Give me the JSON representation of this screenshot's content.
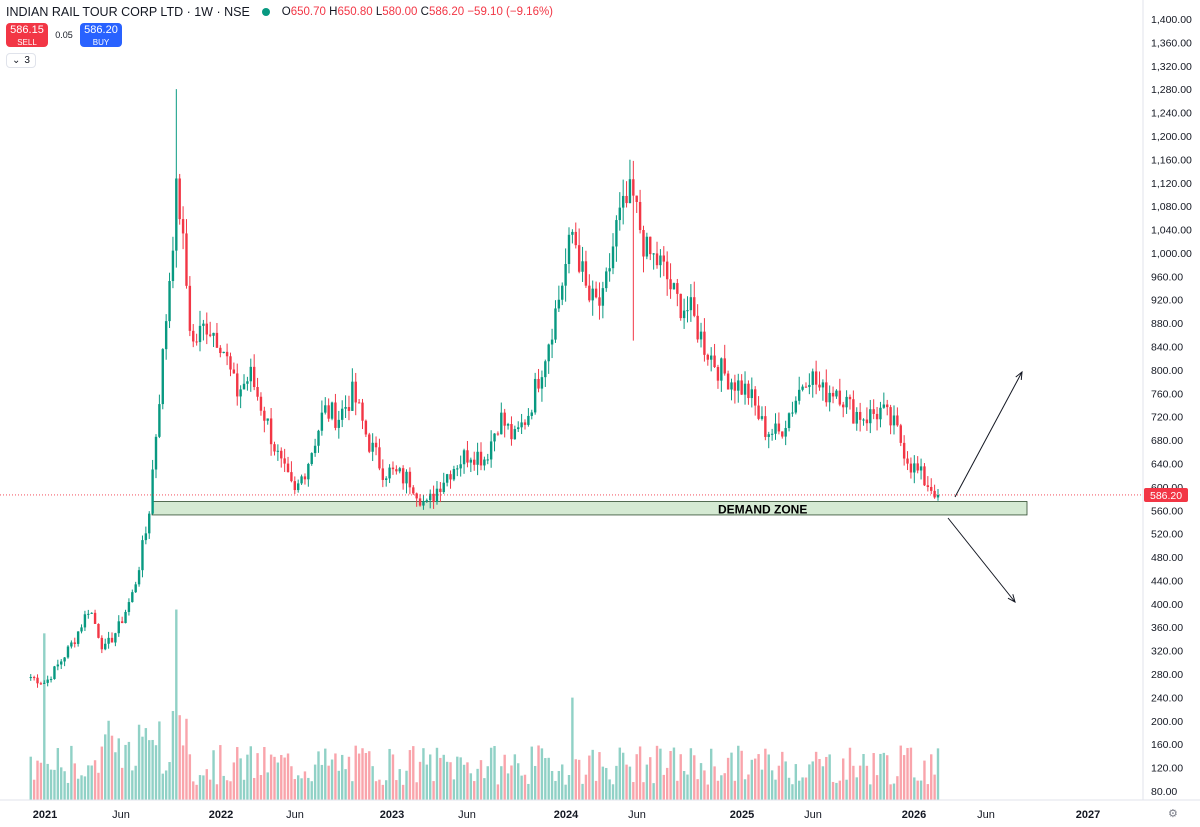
{
  "header": {
    "title": "INDIAN RAIL TOUR CORP LTD · 1W · NSE",
    "open_label": "O",
    "open": "650.70",
    "high_label": "H",
    "high": "650.80",
    "low_label": "L",
    "low": "580.00",
    "close_label": "C",
    "close": "586.20",
    "change": "−59.10 (−9.16%)",
    "status_color": "#089981"
  },
  "trade": {
    "sell_price": "586.15",
    "sell_label": "SELL",
    "spread": "0.05",
    "buy_price": "586.20",
    "buy_label": "BUY"
  },
  "indicators": {
    "chevron": "⌄",
    "count": "3"
  },
  "price_axis": {
    "labels": [
      "1,400.00",
      "1,360.00",
      "1,320.00",
      "1,280.00",
      "1,240.00",
      "1,200.00",
      "1,160.00",
      "1,120.00",
      "1,080.00",
      "1,040.00",
      "1,000.00",
      "960.00",
      "920.00",
      "880.00",
      "840.00",
      "800.00",
      "760.00",
      "720.00",
      "680.00",
      "640.00",
      "600.00",
      "560.00",
      "520.00",
      "480.00",
      "440.00",
      "400.00",
      "360.00",
      "320.00",
      "280.00",
      "240.00",
      "200.00",
      "160.00",
      "120.00",
      "80.00"
    ],
    "current_price_label": "586.20",
    "current_price": 586.2
  },
  "time_axis": [
    "2021",
    "Jun",
    "2022",
    "Jun",
    "2023",
    "Jun",
    "2024",
    "Jun",
    "2025",
    "Jun",
    "2026",
    "Jun",
    "2027"
  ],
  "annotation": {
    "demand_zone": "DEMAND ZONE",
    "zone_low": 552,
    "zone_high": 575
  },
  "colors": {
    "up": "#089981",
    "down": "#f23645",
    "zone_fill": "#d5ead3",
    "zone_border": "#2e4a2e"
  },
  "chart_data": {
    "type": "candlestick",
    "timeframe": "1W",
    "ylim": [
      60,
      1420
    ],
    "waypoints": [
      {
        "date": "2020-12",
        "price": 275
      },
      {
        "date": "2021-01",
        "price": 265
      },
      {
        "date": "2021-02",
        "price": 300
      },
      {
        "date": "2021-03",
        "price": 340
      },
      {
        "date": "2021-04",
        "price": 395
      },
      {
        "date": "2021-05",
        "price": 320
      },
      {
        "date": "2021-06",
        "price": 360
      },
      {
        "date": "2021-07",
        "price": 420
      },
      {
        "date": "2021-08",
        "price": 540
      },
      {
        "date": "2021-09",
        "price": 820
      },
      {
        "date": "2021-10",
        "price": 1120
      },
      {
        "date": "2021-11",
        "price": 840
      },
      {
        "date": "2021-12",
        "price": 880
      },
      {
        "date": "2022-01",
        "price": 850
      },
      {
        "date": "2022-02",
        "price": 760
      },
      {
        "date": "2022-03",
        "price": 790
      },
      {
        "date": "2022-04",
        "price": 720
      },
      {
        "date": "2022-05",
        "price": 640
      },
      {
        "date": "2022-06",
        "price": 585
      },
      {
        "date": "2022-07",
        "price": 650
      },
      {
        "date": "2022-08",
        "price": 730
      },
      {
        "date": "2022-09",
        "price": 720
      },
      {
        "date": "2022-10",
        "price": 760
      },
      {
        "date": "2022-11",
        "price": 680
      },
      {
        "date": "2022-12",
        "price": 630
      },
      {
        "date": "2023-01",
        "price": 620
      },
      {
        "date": "2023-02",
        "price": 610
      },
      {
        "date": "2023-03",
        "price": 565
      },
      {
        "date": "2023-04",
        "price": 610
      },
      {
        "date": "2023-05",
        "price": 640
      },
      {
        "date": "2023-06",
        "price": 660
      },
      {
        "date": "2023-07",
        "price": 650
      },
      {
        "date": "2023-08",
        "price": 720
      },
      {
        "date": "2023-09",
        "price": 680
      },
      {
        "date": "2023-10",
        "price": 730
      },
      {
        "date": "2023-11",
        "price": 820
      },
      {
        "date": "2023-12",
        "price": 920
      },
      {
        "date": "2024-01",
        "price": 1040
      },
      {
        "date": "2024-02",
        "price": 920
      },
      {
        "date": "2024-03",
        "price": 910
      },
      {
        "date": "2024-04",
        "price": 1050
      },
      {
        "date": "2024-05",
        "price": 1100
      },
      {
        "date": "2024-06",
        "price": 1000
      },
      {
        "date": "2024-07",
        "price": 980
      },
      {
        "date": "2024-08",
        "price": 920
      },
      {
        "date": "2024-09",
        "price": 900
      },
      {
        "date": "2024-10",
        "price": 840
      },
      {
        "date": "2024-11",
        "price": 800
      },
      {
        "date": "2024-12",
        "price": 780
      },
      {
        "date": "2025-01",
        "price": 760
      },
      {
        "date": "2025-02",
        "price": 700
      },
      {
        "date": "2025-03",
        "price": 690
      },
      {
        "date": "2025-04",
        "price": 740
      },
      {
        "date": "2025-05",
        "price": 800
      },
      {
        "date": "2025-06",
        "price": 760
      },
      {
        "date": "2025-07",
        "price": 770
      },
      {
        "date": "2025-08",
        "price": 730
      },
      {
        "date": "2025-09",
        "price": 720
      },
      {
        "date": "2025-10",
        "price": 730
      },
      {
        "date": "2025-11",
        "price": 700
      },
      {
        "date": "2025-12",
        "price": 640
      },
      {
        "date": "2026-01",
        "price": 610
      },
      {
        "date": "2026-02",
        "price": 586
      }
    ],
    "wick_extremes": [
      {
        "date": "2021-10",
        "high": 1280
      },
      {
        "date": "2024-05",
        "low": 850
      }
    ],
    "volume_spikes": [
      {
        "date": "2021-10",
        "volume": 400
      },
      {
        "date": "2021-01",
        "volume": 350
      },
      {
        "date": "2024-01",
        "volume": 215
      }
    ]
  }
}
